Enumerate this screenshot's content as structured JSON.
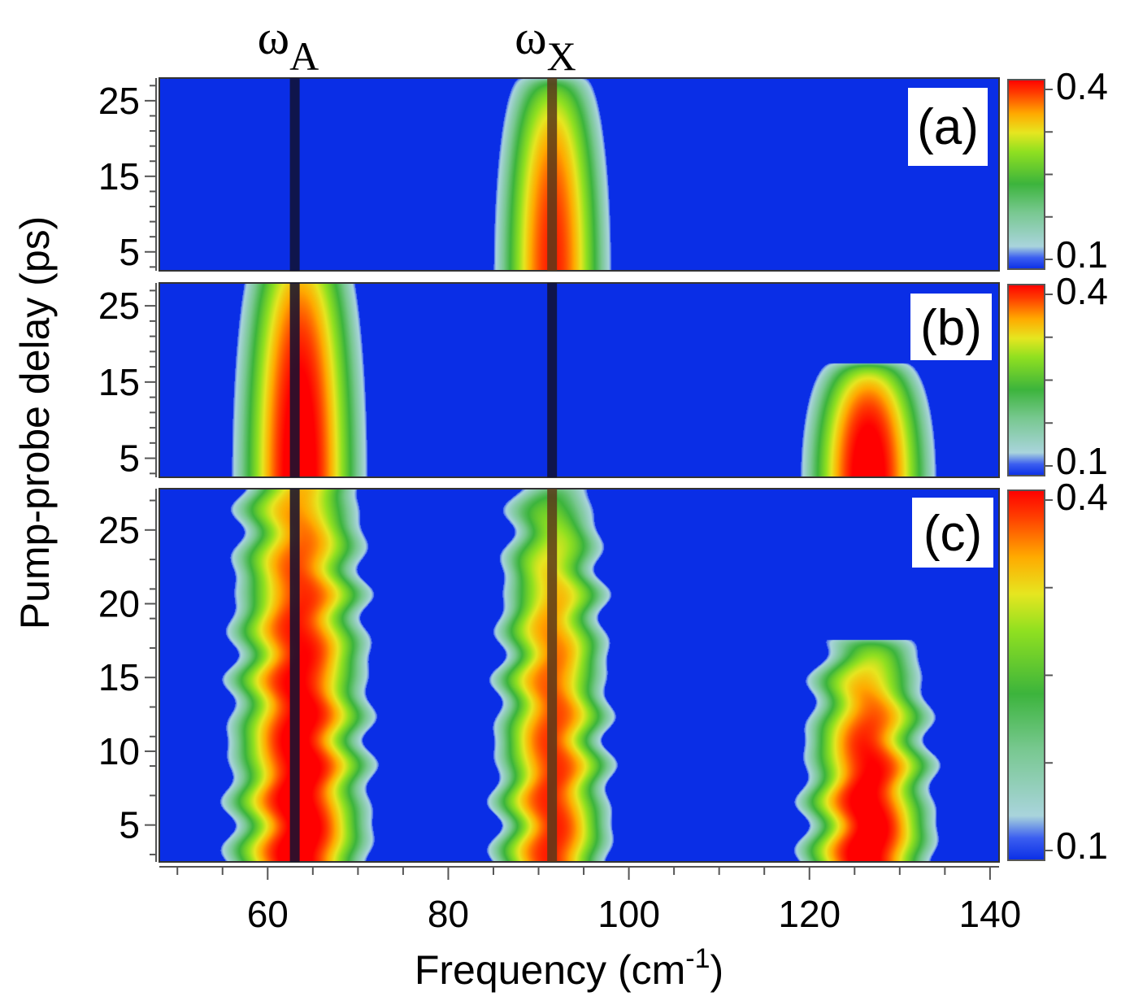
{
  "chart_data": {
    "type": "heatmap",
    "xlabel": "Frequency (cm",
    "xlabel_sup": "-1",
    "xlabel_close": ")",
    "ylabel": "Pump-probe delay (ps)",
    "xlim": [
      48,
      141
    ],
    "x_ticks": [
      "60",
      "80",
      "100",
      "120",
      "140"
    ],
    "x_tick_values": [
      60,
      80,
      100,
      120,
      140
    ],
    "markers": [
      {
        "symbol": "ω",
        "sub": "A",
        "x": 63.0
      },
      {
        "symbol": "ω",
        "sub": "X",
        "x": 91.5
      }
    ],
    "colorscale": {
      "stops": [
        [
          0.0,
          "#0a2ee6"
        ],
        [
          0.06,
          "#3b5ef0"
        ],
        [
          0.12,
          "#a9d4dc"
        ],
        [
          0.3,
          "#78c890"
        ],
        [
          0.45,
          "#3cb43c"
        ],
        [
          0.62,
          "#90e020"
        ],
        [
          0.72,
          "#e6e620"
        ],
        [
          0.82,
          "#ffaa00"
        ],
        [
          0.93,
          "#ff3c00"
        ],
        [
          1.0,
          "#ff0000"
        ]
      ]
    },
    "panels": [
      {
        "label": "(a)",
        "ylim": [
          2.5,
          28
        ],
        "y_ticks": [
          "5",
          "15",
          "25"
        ],
        "y_tick_values": [
          5,
          15,
          25
        ],
        "colorbar_ticks": [
          "0.4",
          "0.1"
        ],
        "colorbar_range": [
          0.1,
          0.4
        ],
        "features": [
          {
            "center": 91.5,
            "halfwidth": 6.5,
            "peak": 0.37,
            "y_extent": [
              2.5,
              28
            ],
            "wobble": 0
          }
        ]
      },
      {
        "label": "(b)",
        "ylim": [
          2.5,
          28
        ],
        "y_ticks": [
          "5",
          "15",
          "25"
        ],
        "y_tick_values": [
          5,
          15,
          25
        ],
        "colorbar_ticks": [
          "0.4",
          "0.1"
        ],
        "colorbar_range": [
          0.1,
          0.4
        ],
        "features": [
          {
            "center": 63.5,
            "halfwidth": 7.5,
            "peak": 0.4,
            "y_extent": [
              2.5,
              34
            ],
            "wobble": 0
          },
          {
            "center": 126.5,
            "halfwidth": 7.5,
            "peak": 0.4,
            "y_extent": [
              2.5,
              17.5
            ],
            "wobble": 0
          }
        ]
      },
      {
        "label": "(c)",
        "ylim": [
          2.5,
          27.8
        ],
        "y_ticks": [
          "5",
          "10",
          "15",
          "20",
          "25"
        ],
        "y_tick_values": [
          5,
          10,
          15,
          20,
          25
        ],
        "colorbar_ticks": [
          "0.4",
          "0.1"
        ],
        "colorbar_range": [
          0.1,
          0.4
        ],
        "features": [
          {
            "center": 63.5,
            "halfwidth": 8,
            "peak": 0.4,
            "y_extent": [
              2.5,
              34
            ],
            "wobble": 1
          },
          {
            "center": 91.5,
            "halfwidth": 6.5,
            "peak": 0.37,
            "y_extent": [
              2.5,
              28
            ],
            "wobble": 1
          },
          {
            "center": 126.5,
            "halfwidth": 7.5,
            "peak": 0.4,
            "y_extent": [
              2.5,
              17.6
            ],
            "wobble": 1
          }
        ]
      }
    ]
  }
}
